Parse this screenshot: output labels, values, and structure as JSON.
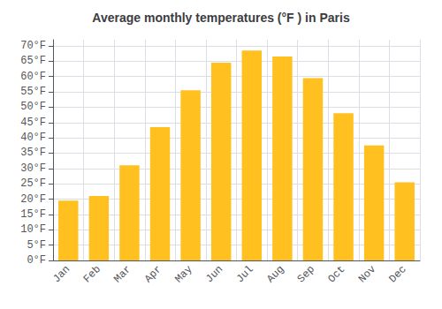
{
  "chart_data": {
    "type": "bar",
    "title": "Average monthly temperatures (°F ) in Paris",
    "categories": [
      "Jan",
      "Feb",
      "Mar",
      "Apr",
      "May",
      "Jun",
      "Jul",
      "Aug",
      "Sep",
      "Oct",
      "Nov",
      "Dec"
    ],
    "values": [
      19.5,
      21.0,
      31.0,
      43.5,
      55.5,
      64.5,
      68.5,
      66.5,
      59.5,
      48.0,
      37.5,
      25.5
    ],
    "color": "#FFC020",
    "ylim": [
      0,
      72
    ],
    "yticks": [
      {
        "value": 0,
        "label": "0°F"
      },
      {
        "value": 5,
        "label": "5°F"
      },
      {
        "value": 10,
        "label": "10°F"
      },
      {
        "value": 15,
        "label": "15°F"
      },
      {
        "value": 20,
        "label": "20°F"
      },
      {
        "value": 25,
        "label": "25°F"
      },
      {
        "value": 30,
        "label": "30°F"
      },
      {
        "value": 35,
        "label": "35°F"
      },
      {
        "value": 40,
        "label": "40°F"
      },
      {
        "value": 45,
        "label": "45°F"
      },
      {
        "value": 50,
        "label": "50°F"
      },
      {
        "value": 55,
        "label": "55°F"
      },
      {
        "value": 60,
        "label": "60°F"
      },
      {
        "value": 65,
        "label": "65°F"
      },
      {
        "value": 70,
        "label": "70°F"
      }
    ],
    "grid": true
  }
}
